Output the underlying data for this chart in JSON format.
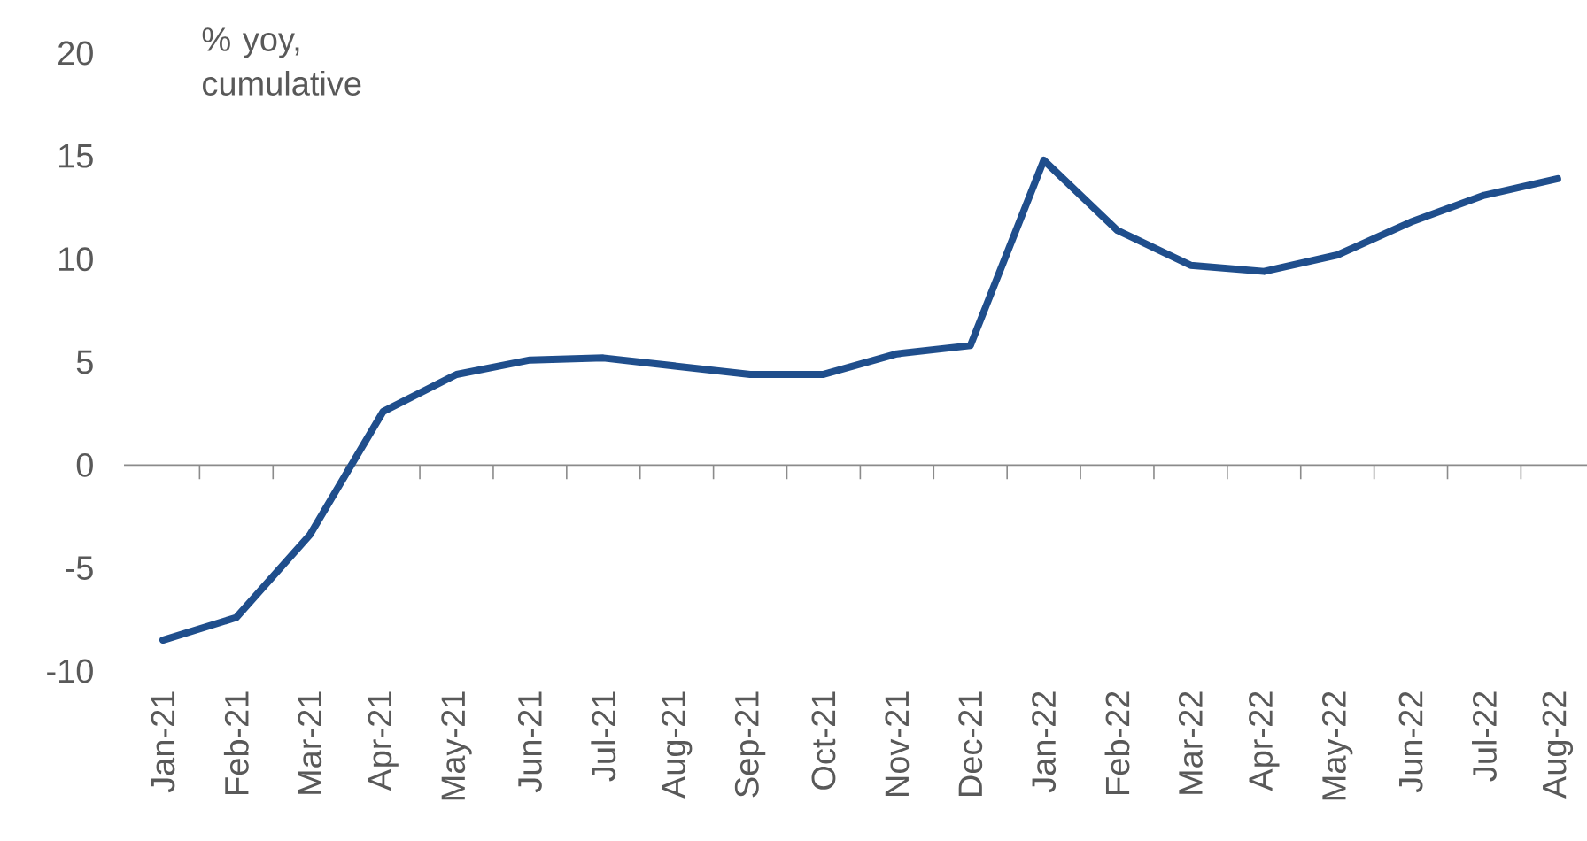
{
  "chart_data": {
    "type": "line",
    "ylabel": "% yoy, cumulative",
    "categories": [
      "Jan-21",
      "Feb-21",
      "Mar-21",
      "Apr-21",
      "May-21",
      "Jun-21",
      "Jul-21",
      "Aug-21",
      "Sep-21",
      "Oct-21",
      "Nov-21",
      "Dec-21",
      "Jan-22",
      "Feb-22",
      "Mar-22",
      "Apr-22",
      "May-22",
      "Jun-22",
      "Jul-22",
      "Aug-22"
    ],
    "series": [
      {
        "color": "#1f4e8c",
        "values": [
          -8.5,
          -7.4,
          -3.4,
          2.6,
          4.4,
          5.1,
          5.2,
          4.8,
          4.4,
          4.4,
          5.4,
          5.8,
          14.8,
          11.4,
          9.7,
          9.4,
          10.2,
          11.8,
          13.1,
          13.9
        ]
      }
    ],
    "ylim": [
      -10,
      20
    ],
    "yticks": [
      -10,
      -5,
      0,
      5,
      10,
      15,
      20
    ],
    "marker": "none",
    "line_style": "solid"
  }
}
